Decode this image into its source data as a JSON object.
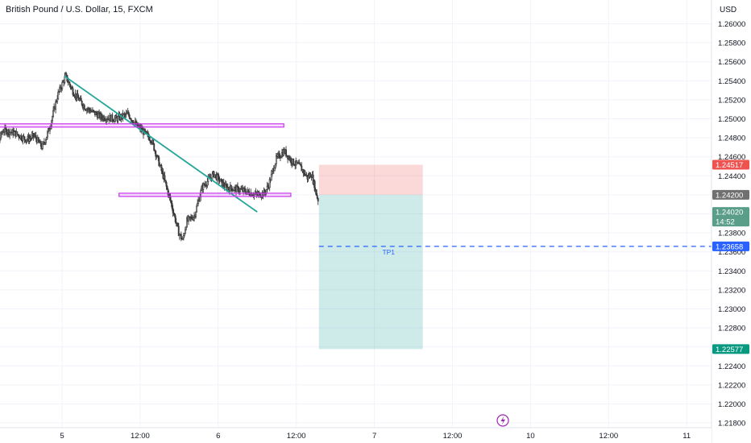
{
  "header": {
    "symbol_title": "British Pound / U.S. Dollar, 15, FXCM",
    "currency": "USD"
  },
  "icons": {
    "replay": "lightning-icon"
  },
  "colors": {
    "bull": "#26a69a",
    "bear": "#ef5350",
    "candle": "#3b3b3b",
    "trendline": "#26a69a",
    "level": "#cc33ee",
    "target_zone": "#26a69a",
    "stop_zone": "#ef5350",
    "tp_line": "#2962ff",
    "badge_last": "#5a9e8a",
    "badge_entry": "#707070"
  },
  "chart_data": {
    "type": "candlestick",
    "title": "British Pound / U.S. Dollar, 15, FXCM",
    "ylabel": "USD",
    "ylim": [
      1.2175,
      1.2625
    ],
    "y_ticks": [
      "1.26000",
      "1.25800",
      "1.25600",
      "1.25400",
      "1.25200",
      "1.25000",
      "1.24800",
      "1.24600",
      "1.24400",
      "1.24200",
      "1.24000",
      "1.23800",
      "1.23600",
      "1.23400",
      "1.23200",
      "1.23000",
      "1.22800",
      "1.22600",
      "1.22400",
      "1.22200",
      "1.22000",
      "1.21800"
    ],
    "x_ticks": [
      {
        "label": "5",
        "t": 1.0
      },
      {
        "label": "12:00",
        "t": 2.0
      },
      {
        "label": "6",
        "t": 3.0
      },
      {
        "label": "12:00",
        "t": 4.0
      },
      {
        "label": "7",
        "t": 5.0
      },
      {
        "label": "12:00",
        "t": 6.0
      },
      {
        "label": "10",
        "t": 7.0
      },
      {
        "label": "12:00",
        "t": 8.0
      },
      {
        "label": "11",
        "t": 9.0
      }
    ],
    "grid": true,
    "price_path": [
      [
        0.0,
        1.2425
      ],
      [
        0.05,
        1.2395
      ],
      [
        0.1,
        1.2412
      ],
      [
        0.15,
        1.2448
      ],
      [
        0.2,
        1.2478
      ],
      [
        0.25,
        1.2488
      ],
      [
        0.4,
        1.2485
      ],
      [
        0.55,
        1.2478
      ],
      [
        0.65,
        1.2482
      ],
      [
        0.75,
        1.247
      ],
      [
        0.8,
        1.248
      ],
      [
        0.85,
        1.2492
      ],
      [
        0.95,
        1.2525
      ],
      [
        1.05,
        1.2545
      ],
      [
        1.15,
        1.2528
      ],
      [
        1.3,
        1.2512
      ],
      [
        1.5,
        1.2502
      ],
      [
        1.7,
        1.25
      ],
      [
        1.85,
        1.2505
      ],
      [
        1.95,
        1.2494
      ],
      [
        2.05,
        1.2486
      ],
      [
        2.15,
        1.2478
      ],
      [
        2.3,
        1.244
      ],
      [
        2.4,
        1.2412
      ],
      [
        2.5,
        1.238
      ],
      [
        2.55,
        1.2372
      ],
      [
        2.6,
        1.2392
      ],
      [
        2.7,
        1.2398
      ],
      [
        2.8,
        1.2428
      ],
      [
        2.95,
        1.2442
      ],
      [
        3.1,
        1.2428
      ],
      [
        3.3,
        1.2425
      ],
      [
        3.5,
        1.242
      ],
      [
        3.6,
        1.2422
      ],
      [
        3.65,
        1.243
      ],
      [
        3.75,
        1.2458
      ],
      [
        3.85,
        1.2466
      ],
      [
        3.95,
        1.2455
      ],
      [
        4.05,
        1.245
      ],
      [
        4.15,
        1.2438
      ],
      [
        4.2,
        1.2442
      ],
      [
        4.28,
        1.2415
      ]
    ],
    "series": [
      {
        "name": "",
        "kind": "trendline",
        "x": [
          1.03,
          3.5
        ],
        "y": [
          1.2545,
          1.2402
        ]
      },
      {
        "name": "",
        "kind": "resistance",
        "x": [
          0.18,
          3.84
        ],
        "y": [
          1.2493,
          1.2493
        ]
      },
      {
        "name": "",
        "kind": "support",
        "x": [
          1.73,
          3.93
        ],
        "y": [
          1.242,
          1.242
        ]
      }
    ],
    "position": {
      "x_start": 4.29,
      "x_end": 5.62,
      "entry": 1.242,
      "stop": 1.24517,
      "target": 1.22577,
      "tp1": 1.23658,
      "tp1_label": "TP1"
    },
    "price_badges": [
      {
        "value": "1.24517",
        "price": 1.24517,
        "kind": "stop"
      },
      {
        "value": "1.24200",
        "price": 1.242,
        "kind": "entry"
      },
      {
        "value": "1.24020",
        "sub": "14:52",
        "price": 1.2402,
        "kind": "last"
      },
      {
        "value": "1.23658",
        "price": 1.23658,
        "kind": "tp1"
      },
      {
        "value": "1.22577",
        "price": 1.22577,
        "kind": "target"
      }
    ]
  }
}
